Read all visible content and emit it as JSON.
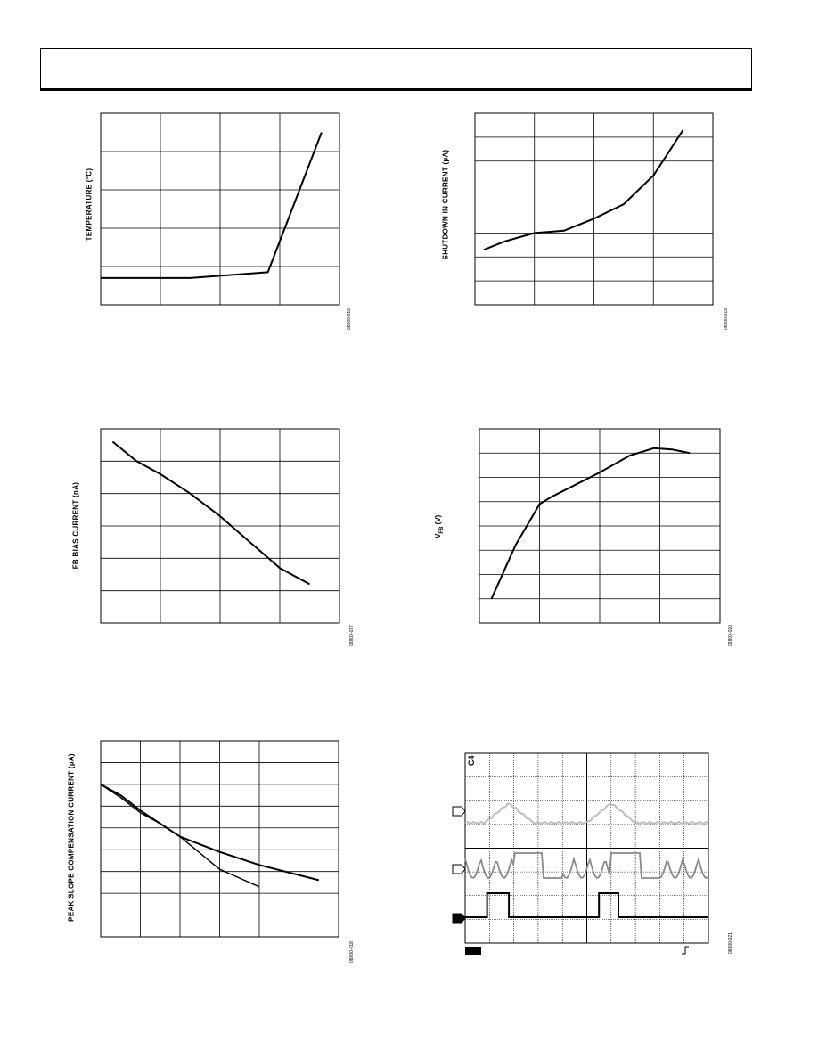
{
  "header": {
    "text": ""
  },
  "charts": [
    {
      "id": "fig16",
      "ylabel": "TEMPERATURE (°C)",
      "figure_id": "08800-016",
      "chart_data": {
        "type": "line",
        "title": "",
        "xlabel": "",
        "ylabel": "TEMPERATURE (°C)",
        "xlim": [
          0,
          4
        ],
        "ylim": [
          0,
          5
        ],
        "grid": true,
        "series": [
          {
            "x": [
              0,
              1.5,
              2.8,
              3.7
            ],
            "y": [
              0.7,
              0.7,
              0.85,
              4.5
            ]
          }
        ]
      }
    },
    {
      "id": "fig19",
      "ylabel": "SHUTDOWN IN CURRENT (µA)",
      "figure_id": "08800-019",
      "chart_data": {
        "type": "line",
        "title": "",
        "xlabel": "",
        "ylabel": "SHUTDOWN IN CURRENT (µA)",
        "xlim": [
          0,
          4
        ],
        "ylim": [
          0,
          8
        ],
        "grid": true,
        "series": [
          {
            "x": [
              0.15,
              0.5,
              1.0,
              1.5,
              2.0,
              2.5,
              3.0,
              3.5
            ],
            "y": [
              2.3,
              2.65,
              3.0,
              3.1,
              3.6,
              4.2,
              5.4,
              7.3
            ]
          }
        ]
      }
    },
    {
      "id": "fig17",
      "ylabel": "FB BIAS CURRENT (nA)",
      "figure_id": "08800-017",
      "chart_data": {
        "type": "line",
        "title": "",
        "xlabel": "",
        "ylabel": "FB BIAS CURRENT (nA)",
        "xlim": [
          0,
          4
        ],
        "ylim": [
          0,
          6
        ],
        "grid": true,
        "series": [
          {
            "x": [
              0.2,
              0.6,
              1.0,
              1.5,
              2.0,
              2.5,
              3.0,
              3.5
            ],
            "y": [
              5.6,
              5.0,
              4.6,
              4.0,
              3.3,
              2.5,
              1.7,
              1.2
            ]
          }
        ]
      }
    },
    {
      "id": "fig20",
      "ylabel": "V",
      "ylabel_sub": "FB",
      "ylabel_unit": "(V)",
      "figure_id": "08800-020",
      "chart_data": {
        "type": "line",
        "title": "",
        "xlabel": "",
        "ylabel": "V FB (V)",
        "xlim": [
          0,
          4
        ],
        "ylim": [
          0,
          8
        ],
        "grid": true,
        "series": [
          {
            "x": [
              0.2,
              0.6,
              1.0,
              1.2,
              2.0,
              2.5,
              2.9,
              3.2,
              3.5
            ],
            "y": [
              1.0,
              3.2,
              4.9,
              5.2,
              6.2,
              6.9,
              7.2,
              7.15,
              7.0
            ]
          }
        ]
      }
    },
    {
      "id": "fig18",
      "ylabel": "PEAK SLOPE COMPENSATION CURRENT (µA)",
      "figure_id": "08800-018",
      "chart_data": {
        "type": "line",
        "title": "",
        "xlabel": "",
        "ylabel": "PEAK SLOPE COMPENSATION CURRENT (µA)",
        "xlim": [
          0,
          6
        ],
        "ylim": [
          0,
          9
        ],
        "grid": true,
        "series": [
          {
            "x": [
              0,
              0.5,
              1.0,
              1.5,
              2.0,
              3.0,
              4.0,
              5.5
            ],
            "y": [
              7.0,
              6.5,
              5.8,
              5.2,
              4.6,
              3.9,
              3.3,
              2.6
            ]
          },
          {
            "x": [
              0,
              0.5,
              1.0,
              1.5,
              2.0,
              3.0,
              4.0
            ],
            "y": [
              7.0,
              6.4,
              5.7,
              5.2,
              4.6,
              3.1,
              2.3
            ]
          }
        ]
      }
    },
    {
      "id": "fig21",
      "ylabel": "",
      "figure_id": "08800-021",
      "scope_label": "C4",
      "chart_data": {
        "type": "line",
        "title": "",
        "xlabel": "",
        "ylabel": "",
        "xlim": [
          0,
          10
        ],
        "ylim": [
          0,
          8
        ],
        "grid": true
      }
    }
  ]
}
